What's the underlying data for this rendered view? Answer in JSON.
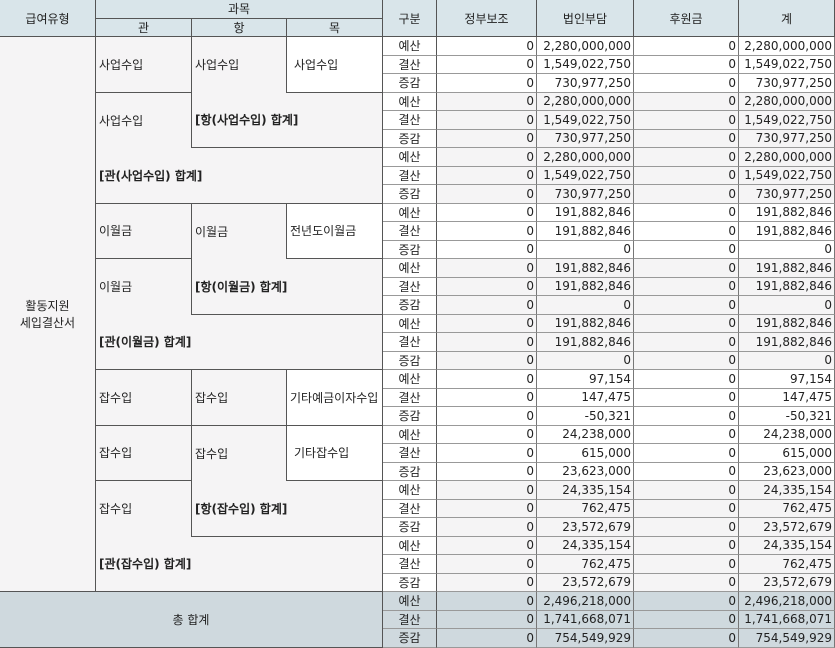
{
  "header": {
    "type": "급여유형",
    "subject": "과목",
    "gwan": "관",
    "hang": "항",
    "mok": "목",
    "division": "구분",
    "columns": [
      "정부보조",
      "법인부담",
      "후원금",
      "계"
    ]
  },
  "row_labels": [
    "예산",
    "결산",
    "증감"
  ],
  "type_label": "활동지원\n세입결산서",
  "blocks": [
    {
      "gwan": "사업수입",
      "hang": "사업수입",
      "mok": "사업수입",
      "values": [
        [
          "0",
          "2,280,000,000",
          "0",
          "2,280,000,000"
        ],
        [
          "0",
          "1,549,022,750",
          "0",
          "1,549,022,750"
        ],
        [
          "0",
          "730,977,250",
          "0",
          "730,977,250"
        ]
      ]
    },
    {
      "gwan": "사업수입",
      "hang_total": "[항(사업수입) 합계]",
      "values": [
        [
          "0",
          "2,280,000,000",
          "0",
          "2,280,000,000"
        ],
        [
          "0",
          "1,549,022,750",
          "0",
          "1,549,022,750"
        ],
        [
          "0",
          "730,977,250",
          "0",
          "730,977,250"
        ]
      ]
    },
    {
      "gwan_total": "[관(사업수입) 합계]",
      "values": [
        [
          "0",
          "2,280,000,000",
          "0",
          "2,280,000,000"
        ],
        [
          "0",
          "1,549,022,750",
          "0",
          "1,549,022,750"
        ],
        [
          "0",
          "730,977,250",
          "0",
          "730,977,250"
        ]
      ]
    },
    {
      "gwan": "이월금",
      "hang": "이월금",
      "mok": "전년도이월금",
      "values": [
        [
          "0",
          "191,882,846",
          "0",
          "191,882,846"
        ],
        [
          "0",
          "191,882,846",
          "0",
          "191,882,846"
        ],
        [
          "0",
          "0",
          "0",
          "0"
        ]
      ]
    },
    {
      "gwan": "이월금",
      "hang_total": "[항(이월금) 합계]",
      "values": [
        [
          "0",
          "191,882,846",
          "0",
          "191,882,846"
        ],
        [
          "0",
          "191,882,846",
          "0",
          "191,882,846"
        ],
        [
          "0",
          "0",
          "0",
          "0"
        ]
      ]
    },
    {
      "gwan_total": "[관(이월금) 합계]",
      "values": [
        [
          "0",
          "191,882,846",
          "0",
          "191,882,846"
        ],
        [
          "0",
          "191,882,846",
          "0",
          "191,882,846"
        ],
        [
          "0",
          "0",
          "0",
          "0"
        ]
      ]
    },
    {
      "gwan": "잡수입",
      "hang": "잡수입",
      "mok": "기타예금이자수입",
      "values": [
        [
          "0",
          "97,154",
          "0",
          "97,154"
        ],
        [
          "0",
          "147,475",
          "0",
          "147,475"
        ],
        [
          "0",
          "-50,321",
          "0",
          "-50,321"
        ]
      ]
    },
    {
      "gwan": "잡수입",
      "hang": "잡수입",
      "mok": "기타잡수입",
      "values": [
        [
          "0",
          "24,238,000",
          "0",
          "24,238,000"
        ],
        [
          "0",
          "615,000",
          "0",
          "615,000"
        ],
        [
          "0",
          "23,623,000",
          "0",
          "23,623,000"
        ]
      ]
    },
    {
      "gwan": "잡수입",
      "hang_total": "[항(잡수입) 합계]",
      "values": [
        [
          "0",
          "24,335,154",
          "0",
          "24,335,154"
        ],
        [
          "0",
          "762,475",
          "0",
          "762,475"
        ],
        [
          "0",
          "23,572,679",
          "0",
          "23,572,679"
        ]
      ]
    },
    {
      "gwan_total": "[관(잡수입) 합계]",
      "values": [
        [
          "0",
          "24,335,154",
          "0",
          "24,335,154"
        ],
        [
          "0",
          "762,475",
          "0",
          "762,475"
        ],
        [
          "0",
          "23,572,679",
          "0",
          "23,572,679"
        ]
      ]
    }
  ],
  "grand_total": {
    "label": "총 합계",
    "values": [
      [
        "0",
        "2,496,218,000",
        "0",
        "2,496,218,000"
      ],
      [
        "0",
        "1,741,668,071",
        "0",
        "1,741,668,071"
      ],
      [
        "0",
        "754,549,929",
        "0",
        "754,549,929"
      ]
    ]
  },
  "colors": {
    "header_bg": "#d9e5ea",
    "total_bg": "#cfd9de",
    "group_bg": "#f5f4f5"
  }
}
